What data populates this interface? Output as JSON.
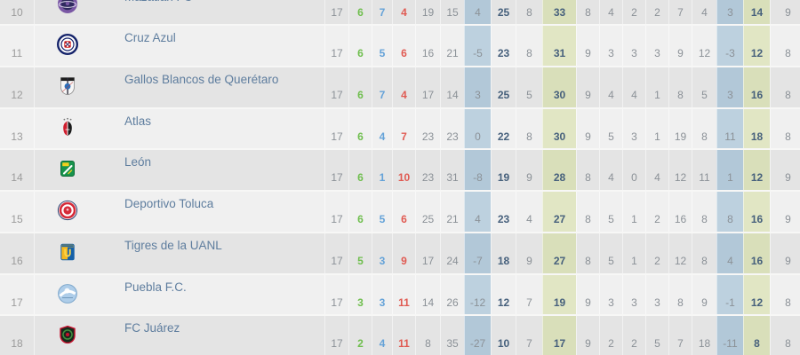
{
  "colors": {
    "win_green": "#6fbe4e",
    "draw_blue": "#64a2d8",
    "loss_red": "#e05a52",
    "points_navy": "#46607c",
    "stat_gray": "#8b9197",
    "team_link_blue": "#5e7d9e",
    "position_gray": "#9b9b9b",
    "row_light_bg": "#f0f0f0",
    "row_gray_bg": "#e4e4e4",
    "row_separator": "#f7f7f6",
    "goal_diff_band_blue_light": "#bdd1df",
    "goal_diff_band_blue_dark": "#b2c8d8",
    "points_band_yellow_light": "#e1e6c4",
    "points_band_yellow_dark": "#d9dfba"
  },
  "table": {
    "rows": [
      {
        "position": "10",
        "team": "Mazatlán FC",
        "badge_icon": "mazatlan-crest-icon",
        "stats": [
          "17",
          "6",
          "7",
          "4",
          "19",
          "15",
          "4",
          "25",
          "8",
          "33",
          "8",
          "4",
          "2",
          "2",
          "7",
          "4",
          "3",
          "14",
          "9"
        ]
      },
      {
        "position": "11",
        "team": "Cruz Azul",
        "badge_icon": "cruz-azul-crest-icon",
        "stats": [
          "17",
          "6",
          "5",
          "6",
          "16",
          "21",
          "-5",
          "23",
          "8",
          "31",
          "9",
          "3",
          "3",
          "3",
          "9",
          "12",
          "-3",
          "12",
          "8"
        ]
      },
      {
        "position": "12",
        "team": "Gallos Blancos de Querétaro",
        "badge_icon": "queretaro-crest-icon",
        "stats": [
          "17",
          "6",
          "7",
          "4",
          "17",
          "14",
          "3",
          "25",
          "5",
          "30",
          "9",
          "4",
          "4",
          "1",
          "8",
          "5",
          "3",
          "16",
          "8"
        ]
      },
      {
        "position": "13",
        "team": "Atlas",
        "badge_icon": "atlas-crest-icon",
        "stats": [
          "17",
          "6",
          "4",
          "7",
          "23",
          "23",
          "0",
          "22",
          "8",
          "30",
          "9",
          "5",
          "3",
          "1",
          "19",
          "8",
          "11",
          "18",
          "8"
        ]
      },
      {
        "position": "14",
        "team": "León",
        "badge_icon": "leon-crest-icon",
        "stats": [
          "17",
          "6",
          "1",
          "10",
          "23",
          "31",
          "-8",
          "19",
          "9",
          "28",
          "8",
          "4",
          "0",
          "4",
          "12",
          "11",
          "1",
          "12",
          "9"
        ]
      },
      {
        "position": "15",
        "team": "Deportivo Toluca",
        "badge_icon": "toluca-crest-icon",
        "stats": [
          "17",
          "6",
          "5",
          "6",
          "25",
          "21",
          "4",
          "23",
          "4",
          "27",
          "8",
          "5",
          "1",
          "2",
          "16",
          "8",
          "8",
          "16",
          "9"
        ]
      },
      {
        "position": "16",
        "team": "Tigres de la UANL",
        "badge_icon": "tigres-crest-icon",
        "stats": [
          "17",
          "5",
          "3",
          "9",
          "17",
          "24",
          "-7",
          "18",
          "9",
          "27",
          "8",
          "5",
          "1",
          "2",
          "12",
          "8",
          "4",
          "16",
          "9"
        ]
      },
      {
        "position": "17",
        "team": "Puebla F.C.",
        "badge_icon": "puebla-crest-icon",
        "stats": [
          "17",
          "3",
          "3",
          "11",
          "14",
          "26",
          "-12",
          "12",
          "7",
          "19",
          "9",
          "3",
          "3",
          "3",
          "8",
          "9",
          "-1",
          "12",
          "8"
        ]
      },
      {
        "position": "18",
        "team": "FC Juárez",
        "badge_icon": "juarez-crest-icon",
        "stats": [
          "17",
          "2",
          "4",
          "11",
          "8",
          "35",
          "-27",
          "10",
          "7",
          "17",
          "9",
          "2",
          "2",
          "5",
          "7",
          "18",
          "-11",
          "8",
          "8"
        ]
      }
    ]
  }
}
